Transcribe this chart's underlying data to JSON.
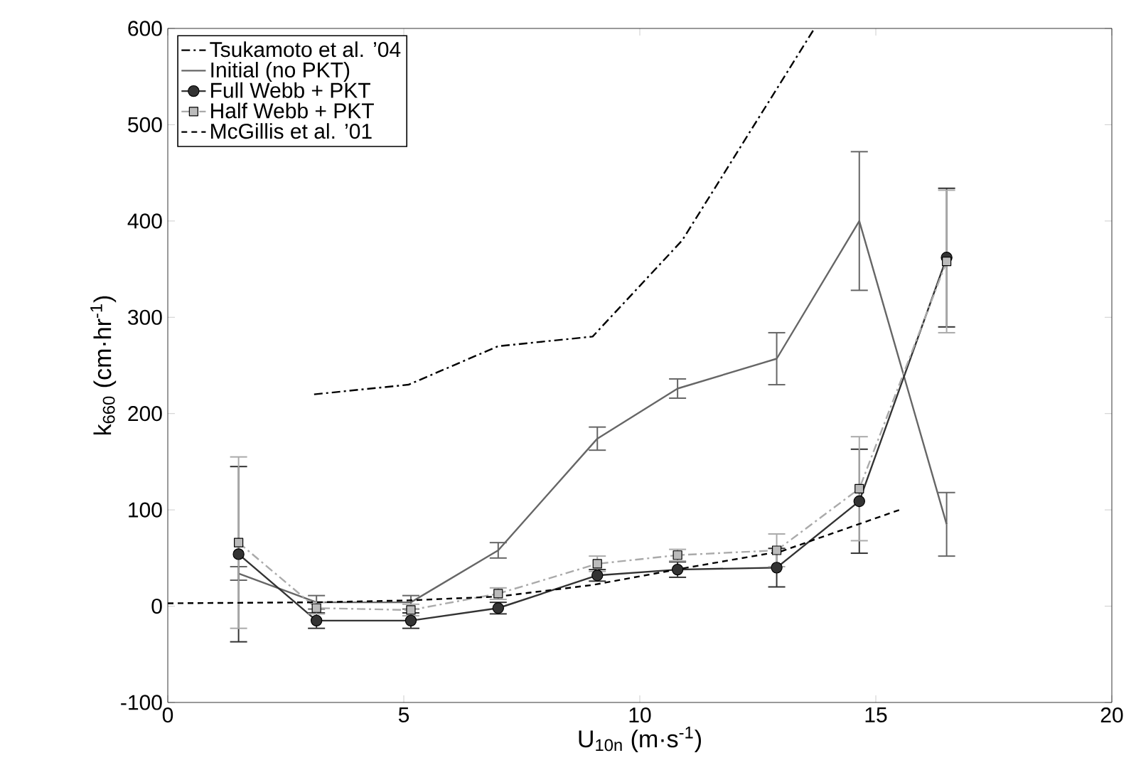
{
  "chart_data": {
    "type": "line",
    "xlabel": "U$_{10n}$ (m·s$^{-1}$)",
    "ylabel": "k$_{660}$ (cm·hr$^{-1}$)",
    "xlim": [
      0,
      20
    ],
    "ylim": [
      -100,
      600
    ],
    "xticks": [
      0,
      5,
      10,
      15,
      20
    ],
    "yticks": [
      -100,
      0,
      100,
      200,
      300,
      400,
      500,
      600
    ],
    "legend": "top left",
    "grid": false,
    "series": [
      {
        "name": "Tsukamoto et al. ’04",
        "color": "#000000",
        "line_style": "dashdot",
        "marker": "none",
        "x": [
          3.1,
          5.1,
          7.0,
          9.0,
          10.9,
          13.7
        ],
        "values": [
          220,
          230,
          270,
          280,
          380,
          600
        ]
      },
      {
        "name": "Initial (no PKT)",
        "color": "#666666",
        "line_style": "solid",
        "marker": "none",
        "x": [
          1.5,
          3.15,
          5.15,
          7.0,
          9.1,
          10.8,
          12.9,
          14.65,
          16.5
        ],
        "values": [
          34,
          4,
          4,
          58,
          174,
          226,
          257,
          400,
          85
        ],
        "errors": [
          7,
          7,
          7,
          8,
          12,
          10,
          27,
          72,
          33
        ]
      },
      {
        "name": "Full Webb + PKT",
        "color": "#333333",
        "line_style": "solid",
        "marker": "circle",
        "x": [
          1.5,
          3.15,
          5.15,
          7.0,
          9.1,
          10.8,
          12.9,
          14.65,
          16.5
        ],
        "values": [
          54,
          -15,
          -15,
          -2,
          32,
          38,
          40,
          109,
          362
        ],
        "errors": [
          91,
          8,
          8,
          6,
          6,
          8,
          20,
          54,
          72
        ]
      },
      {
        "name": "Half Webb + PKT",
        "color": "#aaaaaa",
        "line_style": "dashdot",
        "marker": "square",
        "x": [
          1.5,
          3.15,
          5.15,
          7.0,
          9.1,
          10.8,
          12.9,
          14.65,
          16.5
        ],
        "values": [
          66,
          -2,
          -4,
          13,
          44,
          53,
          58,
          122,
          358
        ],
        "errors": [
          89,
          6,
          6,
          6,
          8,
          6,
          17,
          54,
          74
        ]
      },
      {
        "name": "McGillis et al. ’01",
        "color": "#000000",
        "line_style": "dashed",
        "marker": "none",
        "x": [
          0,
          3.1,
          5.1,
          7.0,
          9.0,
          11.0,
          13.0,
          15.5
        ],
        "values": [
          3,
          4,
          6,
          10,
          22,
          40,
          57,
          100
        ]
      }
    ]
  }
}
